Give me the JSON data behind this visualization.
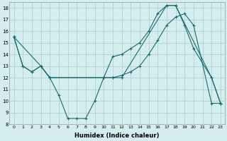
{
  "xlabel": "Humidex (Indice chaleur)",
  "bg_color": "#d4eeee",
  "grid_color": "#aacccc",
  "line_color": "#1a6b6b",
  "line1_x": [
    0,
    1,
    2,
    3,
    4,
    10,
    11,
    12,
    13,
    14,
    15,
    16,
    17,
    18,
    19,
    20,
    22,
    23
  ],
  "line1_y": [
    15.5,
    13.0,
    12.5,
    13.0,
    12.0,
    12.0,
    13.8,
    14.0,
    14.5,
    15.0,
    16.0,
    17.5,
    18.2,
    18.2,
    16.5,
    14.5,
    12.0,
    9.8
  ],
  "line2_x": [
    0,
    3,
    4,
    5,
    6,
    7,
    8,
    9,
    10,
    11,
    12,
    17,
    18,
    22,
    23
  ],
  "line2_y": [
    15.5,
    13.0,
    12.0,
    10.5,
    8.5,
    8.5,
    8.5,
    10.0,
    12.0,
    12.0,
    12.0,
    18.2,
    18.2,
    12.0,
    9.8
  ],
  "line3_x": [
    0,
    1,
    2,
    3,
    4,
    10,
    11,
    12,
    13,
    14,
    15,
    16,
    17,
    18,
    19,
    20,
    22,
    23
  ],
  "line3_y": [
    15.5,
    13.0,
    12.5,
    13.0,
    12.0,
    12.0,
    12.0,
    12.2,
    12.5,
    13.0,
    14.0,
    15.2,
    16.5,
    17.2,
    17.5,
    16.5,
    9.8,
    9.8
  ],
  "ylim": [
    8,
    18.5
  ],
  "xlim": [
    -0.5,
    23.5
  ],
  "yticks": [
    8,
    9,
    10,
    11,
    12,
    13,
    14,
    15,
    16,
    17,
    18
  ],
  "xticks": [
    0,
    1,
    2,
    3,
    4,
    5,
    6,
    7,
    8,
    9,
    10,
    11,
    12,
    13,
    14,
    15,
    16,
    17,
    18,
    19,
    20,
    21,
    22,
    23
  ]
}
